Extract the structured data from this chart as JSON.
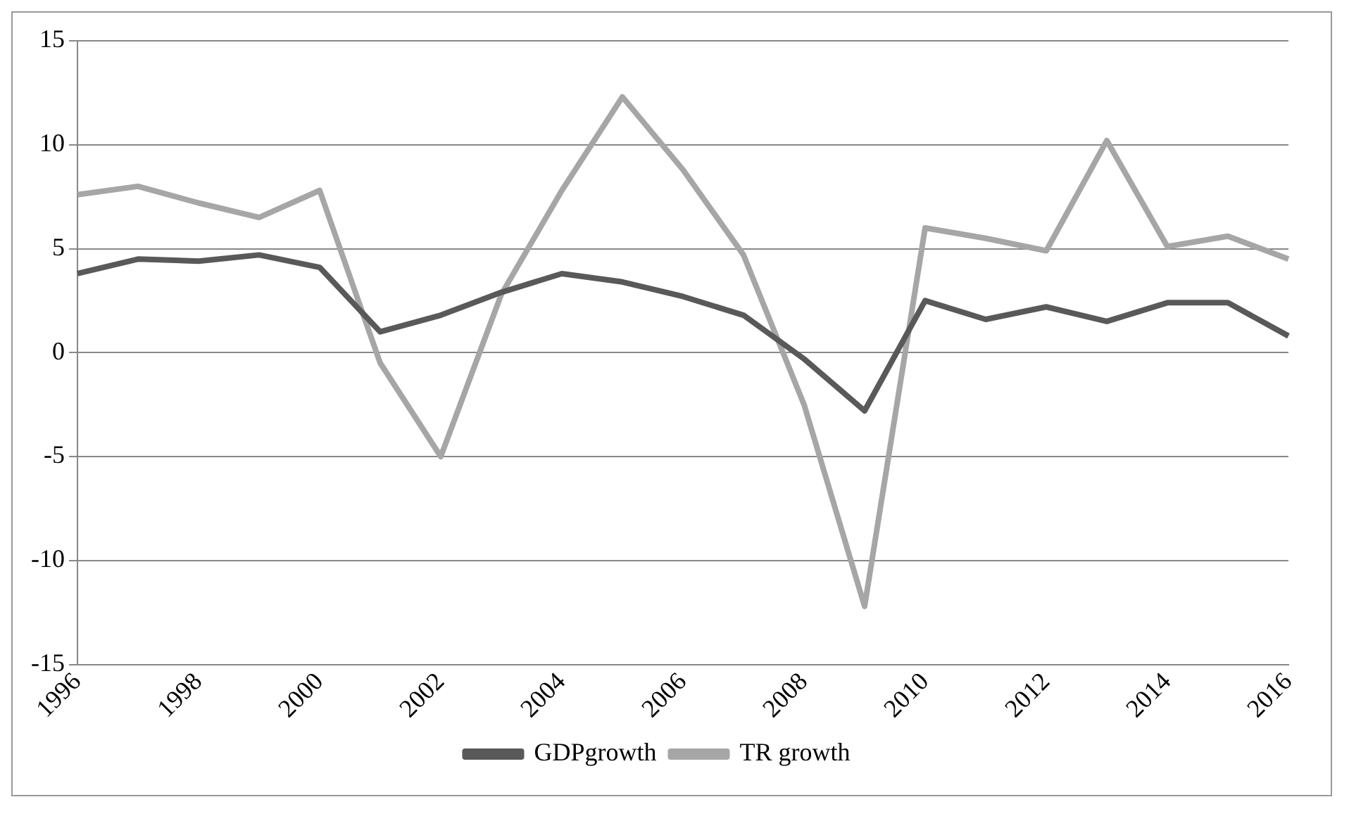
{
  "chart_data": {
    "type": "line",
    "categories": [
      "1996",
      null,
      "1998",
      null,
      "2000",
      null,
      "2002",
      null,
      "2004",
      null,
      "2006",
      null,
      "2008",
      null,
      "2010",
      null,
      "2012",
      null,
      "2014",
      null,
      "2016"
    ],
    "series": [
      {
        "name": "GDPgrowth",
        "color": "#595959",
        "values": [
          3.8,
          4.5,
          4.4,
          4.7,
          4.1,
          1.0,
          1.8,
          2.9,
          3.8,
          3.4,
          2.7,
          1.8,
          -0.3,
          -2.8,
          2.5,
          1.6,
          2.2,
          1.5,
          2.4,
          2.4,
          0.8
        ]
      },
      {
        "name": "TR growth",
        "color": "#a6a6a6",
        "values": [
          7.6,
          8.0,
          7.2,
          6.5,
          7.8,
          -0.5,
          -5.0,
          2.8,
          7.8,
          12.3,
          8.8,
          4.7,
          -2.5,
          -12.2,
          6.0,
          5.5,
          4.9,
          10.2,
          5.1,
          5.6,
          4.5
        ]
      }
    ],
    "ylim": [
      -15,
      15
    ],
    "yticks": [
      -15,
      -10,
      -5,
      0,
      5,
      10,
      15
    ],
    "grid": "y",
    "legend": "bottom",
    "marker": "none",
    "line_style": "solid"
  }
}
